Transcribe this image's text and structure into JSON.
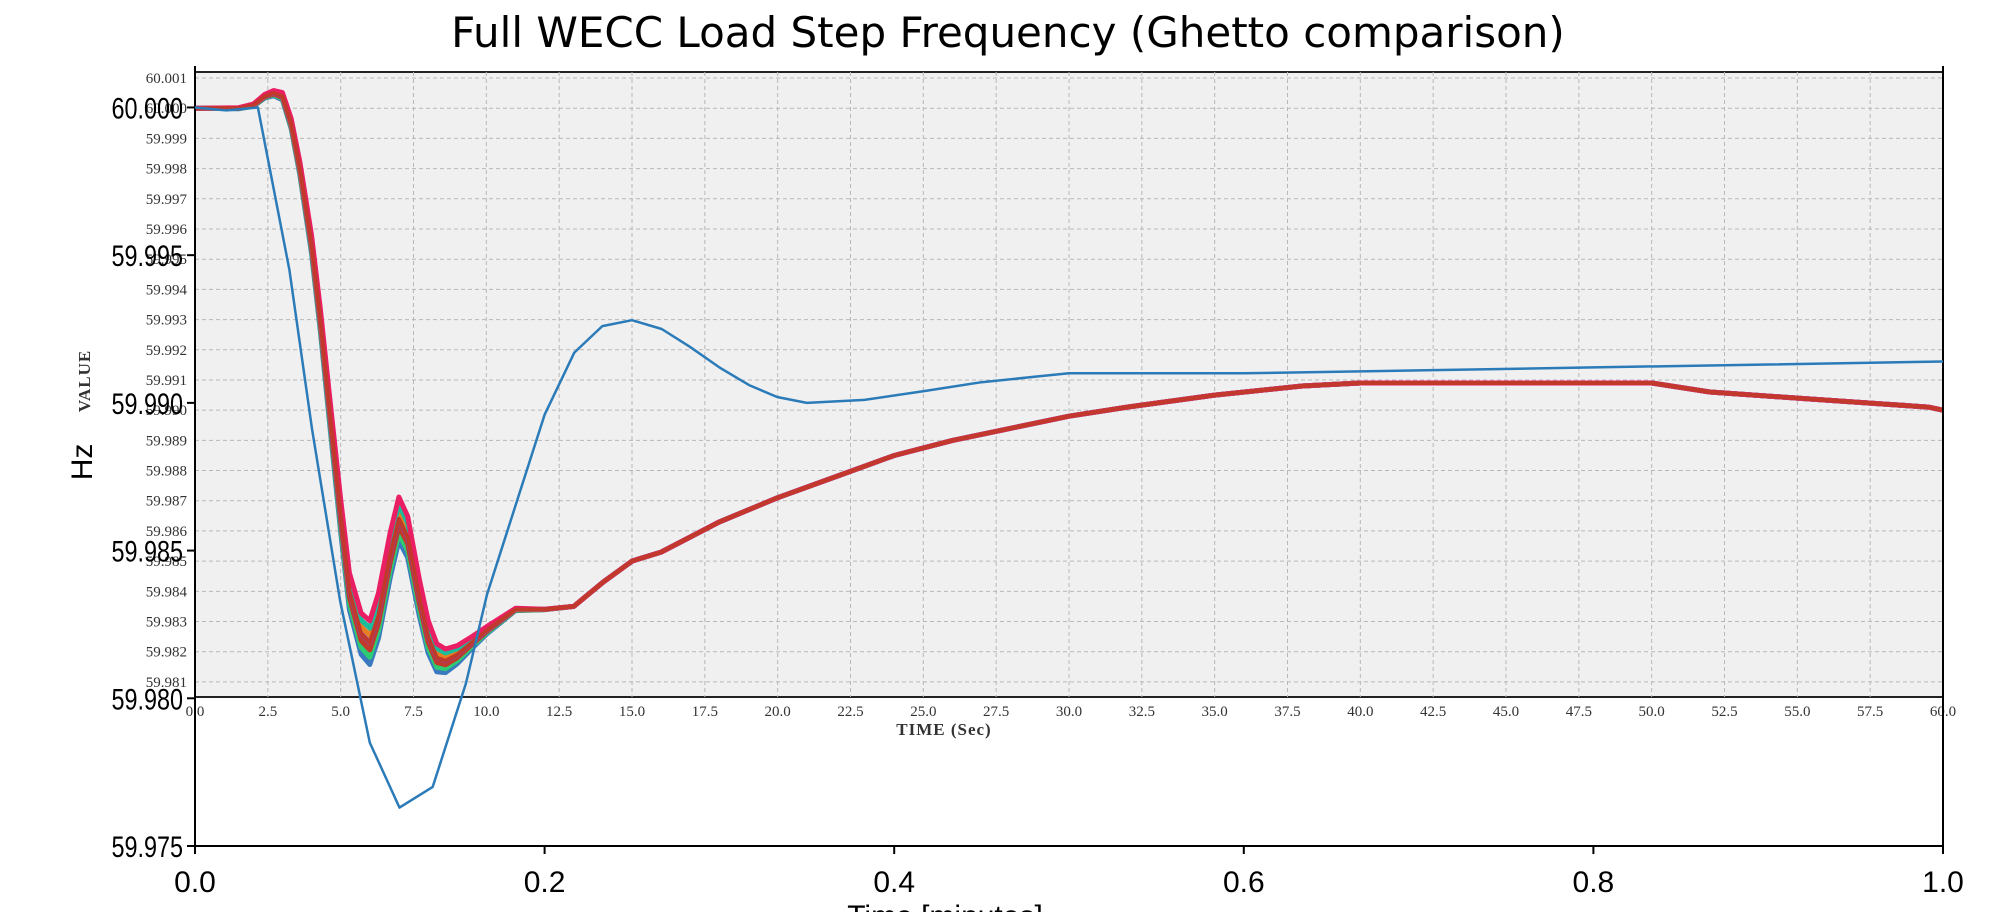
{
  "title": "Full WECC Load Step Frequency (Ghetto comparison)",
  "chart_data": {
    "type": "line",
    "title": "Full WECC Load Step Frequency (Ghetto comparison)",
    "colors": {
      "plot_bg": "#f0f0f0",
      "grid": "#b8b8b8",
      "overlay_line": "#2b7bb9",
      "base_line": "#c0392b",
      "band_colors": [
        "#3a78c0",
        "#2ecc71",
        "#c0392b",
        "#8e44ad",
        "#e67e22",
        "#1abc9c",
        "#e91e63"
      ]
    },
    "inner_axes": {
      "xlabel": "TIME (Sec)",
      "ylabel": "VALUE",
      "xlim": [
        0,
        60
      ],
      "ylim": [
        59.9805,
        60.0012
      ],
      "xticks": [
        "0.0",
        "2.5",
        "5.0",
        "7.5",
        "10.0",
        "12.5",
        "15.0",
        "17.5",
        "20.0",
        "22.5",
        "25.0",
        "27.5",
        "30.0",
        "32.5",
        "35.0",
        "37.5",
        "40.0",
        "42.5",
        "45.0",
        "47.5",
        "50.0",
        "52.5",
        "55.0",
        "57.5",
        "60.0"
      ],
      "yticks": [
        "60.001",
        "60.000",
        "59.999",
        "59.998",
        "59.997",
        "59.996",
        "59.995",
        "59.994",
        "59.993",
        "59.992",
        "59.991",
        "59.990",
        "59.989",
        "59.988",
        "59.987",
        "59.986",
        "59.985",
        "59.984",
        "59.983",
        "59.982",
        "59.981"
      ],
      "grid": true,
      "series": [
        {
          "x": [
            0,
            1.5,
            2.0,
            2.4,
            2.7,
            3.0,
            3.3,
            3.6,
            4.0,
            4.3,
            4.6,
            5.0,
            5.3,
            5.7,
            6.0,
            6.3,
            6.7,
            7.0,
            7.3,
            7.7,
            8.0,
            8.3,
            8.6,
            9.0,
            9.5,
            10.0,
            11.0,
            12.0,
            13.0,
            14.0,
            15.0,
            16.0,
            17.0,
            18.0,
            19.0,
            20.0,
            22.0,
            24.0,
            26.0,
            28.0,
            30.0,
            32.0,
            35.0,
            38.0,
            40.0,
            42.0,
            45.0,
            48.0,
            50.0,
            52.0,
            55.0,
            58.0,
            59.5,
            60.0
          ],
          "y": [
            60.0,
            60.0,
            60.0001,
            60.0004,
            60.0005,
            60.0004,
            59.9995,
            59.998,
            59.9955,
            59.993,
            59.9902,
            59.9865,
            59.984,
            59.9826,
            59.9823,
            59.9832,
            59.9852,
            59.9864,
            59.9858,
            59.9838,
            59.9825,
            59.9818,
            59.9817,
            59.9819,
            59.9823,
            59.9827,
            59.9834,
            59.9834,
            59.9835,
            59.9843,
            59.985,
            59.9853,
            59.9858,
            59.9863,
            59.9867,
            59.9871,
            59.9878,
            59.9885,
            59.989,
            59.9894,
            59.9898,
            59.9901,
            59.9905,
            59.9908,
            59.9909,
            59.9909,
            59.9909,
            59.9909,
            59.9909,
            59.9906,
            59.9904,
            59.9902,
            59.9901,
            59.99
          ]
        }
      ]
    },
    "outer_axes": {
      "xlabel": "Time [minutes]",
      "ylabel": "Hz",
      "xlim": [
        0,
        1
      ],
      "ylim": [
        59.975,
        60.0012
      ],
      "xticks": [
        "0.0",
        "0.2",
        "0.4",
        "0.6",
        "0.8",
        "1.0"
      ],
      "yticks": [
        "60.000",
        "59.995",
        "59.990",
        "59.985",
        "59.980",
        "59.975"
      ],
      "series": [
        {
          "x": [
            0,
            0.018,
            0.036,
            0.054,
            0.067,
            0.083,
            0.1,
            0.117,
            0.136,
            0.155,
            0.167,
            0.2,
            0.217,
            0.233,
            0.25,
            0.267,
            0.283,
            0.3,
            0.317,
            0.333,
            0.35,
            0.383,
            0.417,
            0.45,
            0.483,
            0.5,
            0.55,
            0.6,
            0.7,
            0.8,
            0.9,
            1.0
          ],
          "y": [
            60.0,
            59.9999,
            60.0,
            59.9945,
            59.9891,
            59.9833,
            59.9785,
            59.9763,
            59.977,
            59.9805,
            59.9835,
            59.9896,
            59.9917,
            59.9926,
            59.9928,
            59.9925,
            59.9919,
            59.9912,
            59.9906,
            59.9902,
            59.99,
            59.9901,
            59.9904,
            59.9907,
            59.9909,
            59.991,
            59.991,
            59.991,
            59.9911,
            59.9912,
            59.9913,
            59.9914
          ]
        }
      ]
    }
  }
}
